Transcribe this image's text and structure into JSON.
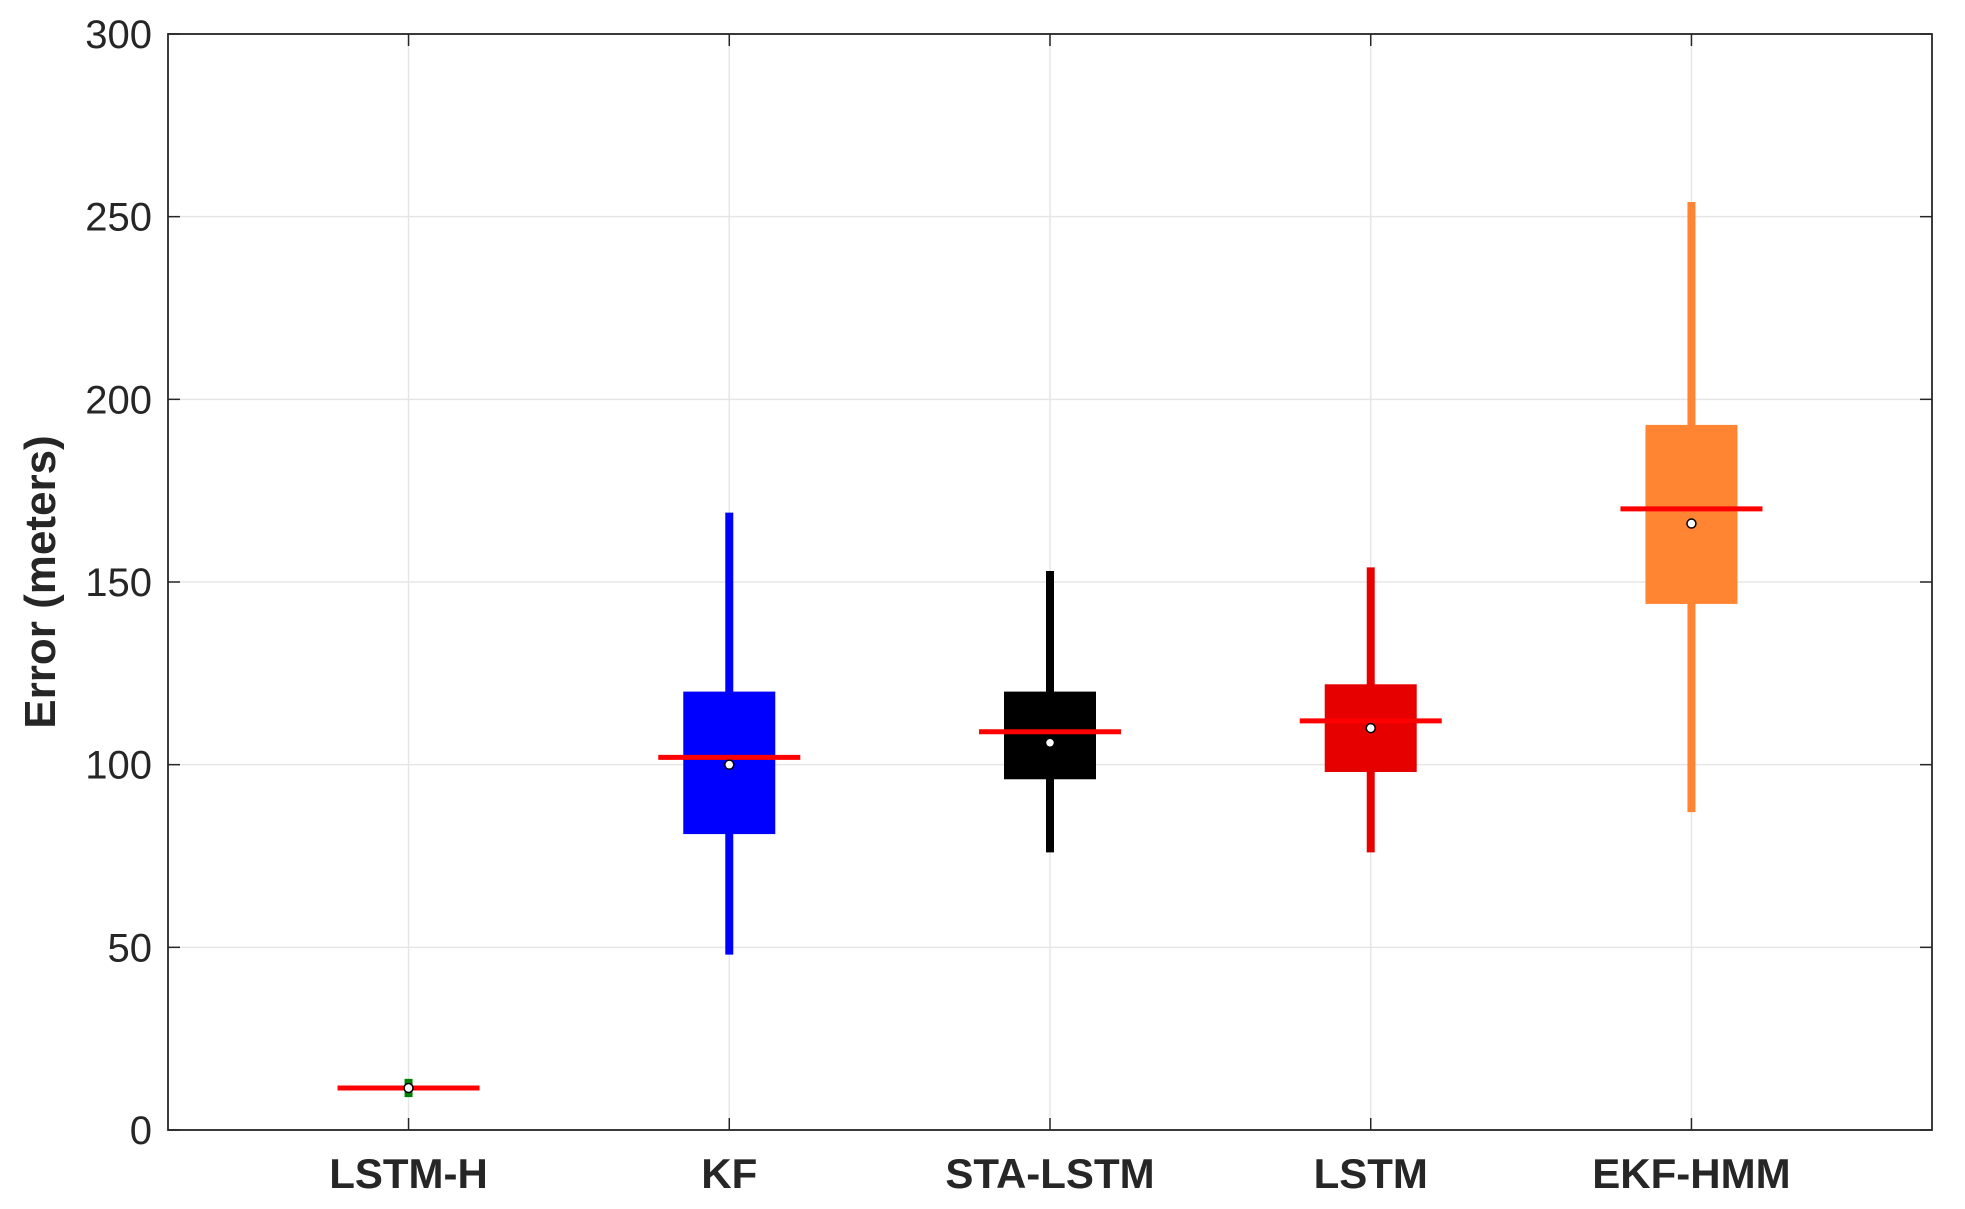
{
  "chart_data": {
    "type": "boxplot",
    "title": "",
    "xlabel": "",
    "ylabel": "Error (meters)",
    "ylim": [
      0,
      300
    ],
    "yticks": [
      0,
      50,
      100,
      150,
      200,
      250,
      300
    ],
    "grid": true,
    "categories": [
      "LSTM-H",
      "KF",
      "STA-LSTM",
      "LSTM",
      "EKF-HMM"
    ],
    "boxes": [
      {
        "category": "LSTM-H",
        "whisker_low": 9,
        "q1": 11,
        "median": 11.5,
        "q3": 12,
        "whisker_high": 14,
        "mean": 11.5,
        "color": "#008000"
      },
      {
        "category": "KF",
        "whisker_low": 48,
        "q1": 81,
        "median": 102,
        "q3": 120,
        "whisker_high": 169,
        "mean": 100,
        "color": "#0000ff"
      },
      {
        "category": "STA-LSTM",
        "whisker_low": 76,
        "q1": 96,
        "median": 109,
        "q3": 120,
        "whisker_high": 153,
        "mean": 106,
        "color": "#000000"
      },
      {
        "category": "LSTM",
        "whisker_low": 76,
        "q1": 98,
        "median": 112,
        "q3": 122,
        "whisker_high": 154,
        "mean": 110,
        "color": "#e60000"
      },
      {
        "category": "EKF-HMM",
        "whisker_low": 87,
        "q1": 144,
        "median": 170,
        "q3": 193,
        "whisker_high": 254,
        "mean": 166,
        "color": "#ff8533"
      }
    ],
    "median_color": "#ff0000"
  }
}
